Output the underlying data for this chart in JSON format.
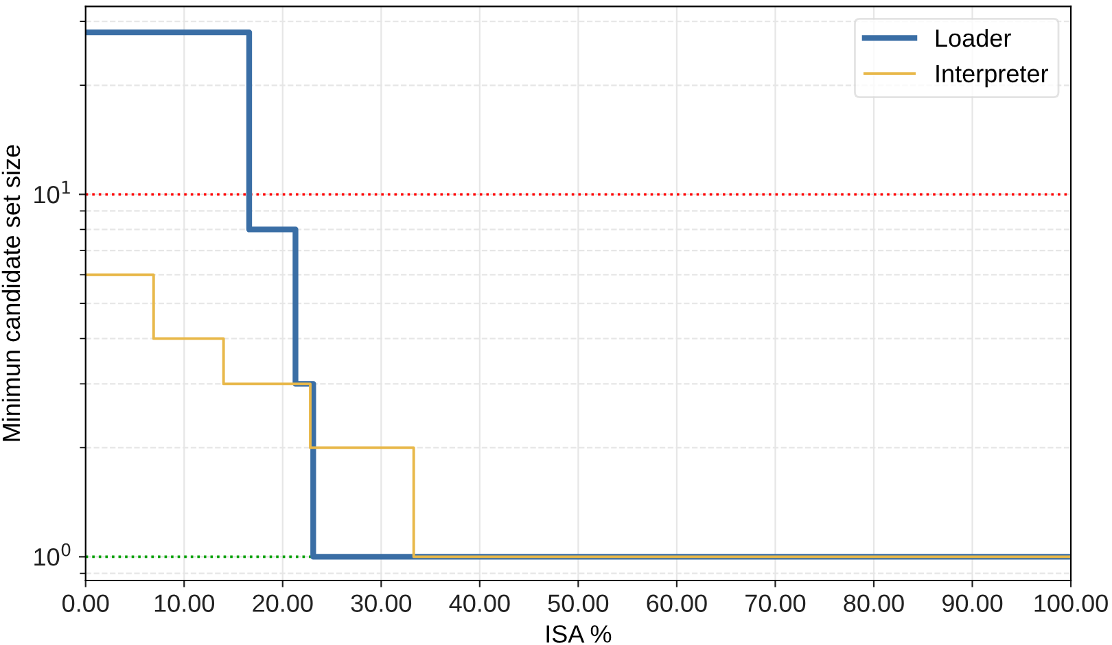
{
  "chart_data": {
    "type": "step",
    "xlabel": "ISA %",
    "ylabel": "Minimun candidate set size",
    "log": "y",
    "xlim": [
      0,
      100
    ],
    "xticks": [
      {
        "value": 0,
        "label": "0.00"
      },
      {
        "value": 10,
        "label": "10.00"
      },
      {
        "value": 20,
        "label": "20.00"
      },
      {
        "value": 30,
        "label": "30.00"
      },
      {
        "value": 40,
        "label": "40.00"
      },
      {
        "value": 50,
        "label": "50.00"
      },
      {
        "value": 60,
        "label": "60.00"
      },
      {
        "value": 70,
        "label": "70.00"
      },
      {
        "value": 80,
        "label": "80.00"
      },
      {
        "value": 90,
        "label": "90.00"
      },
      {
        "value": 100,
        "label": "100.00"
      }
    ],
    "ylim": [
      0.86,
      33
    ],
    "yticks": [
      {
        "value": 1,
        "label": "10$^{0}$"
      },
      {
        "value": 10,
        "label": "10$^{1}$"
      }
    ],
    "series": [
      {
        "name": "Loader",
        "color": "#3a6ea5",
        "x": [
          0,
          16.6,
          21.3,
          23.1,
          100
        ],
        "values": [
          28,
          8,
          3,
          1,
          1
        ]
      },
      {
        "name": "Interpreter",
        "color": "#e8b84a",
        "x": [
          0,
          6.9,
          14.0,
          22.8,
          33.3,
          100
        ],
        "values": [
          6,
          4,
          3,
          2,
          1,
          1
        ]
      }
    ],
    "ref_lines": [
      {
        "axis": "y",
        "value": 10,
        "color": "#ff0000",
        "line_style": "dotted"
      },
      {
        "axis": "y",
        "value": 1,
        "color": "#00a000",
        "line_style": "dotted"
      }
    ],
    "grid": true,
    "legend": "top right",
    "line_style": "solid",
    "marker": "none"
  }
}
